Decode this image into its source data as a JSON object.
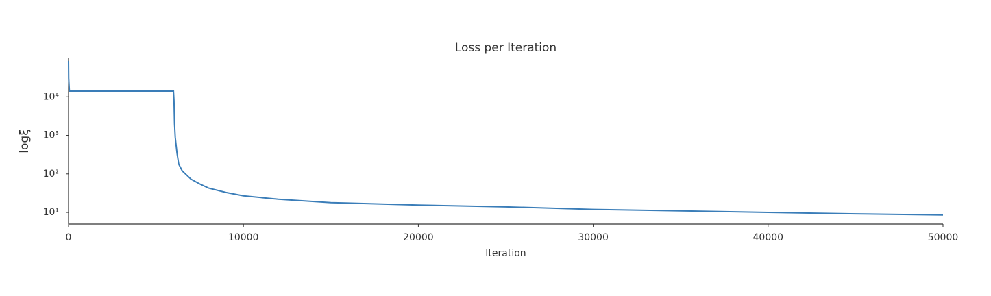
{
  "chart_data": {
    "type": "line",
    "title": "Loss per Iteration",
    "x_label": "Iteration",
    "y_label": "logξ",
    "x": [
      0,
      10,
      50,
      100,
      6000,
      6030,
      6060,
      6100,
      6200,
      6300,
      6500,
      7000,
      7500,
      8000,
      9000,
      10000,
      12000,
      15000,
      20000,
      25000,
      30000,
      35000,
      40000,
      45000,
      50000
    ],
    "series": [
      {
        "name": "loss",
        "color": "#3a7db8",
        "values": [
          85000,
          30000,
          14000,
          14000,
          14000,
          8000,
          2000,
          900,
          350,
          180,
          120,
          73,
          55,
          43,
          33,
          27,
          22,
          18,
          15.6,
          14,
          12,
          11,
          10,
          9.2,
          8.6
        ]
      }
    ],
    "xlim": [
      0,
      50000
    ],
    "xticks": [
      0,
      10000,
      20000,
      30000,
      40000,
      50000
    ],
    "ylim": [
      5,
      100000
    ],
    "y_scale": "log",
    "yticks": [
      {
        "value": 10,
        "label": "10¹"
      },
      {
        "value": 100,
        "label": "10²"
      },
      {
        "value": 1000,
        "label": "10³"
      },
      {
        "value": 10000,
        "label": "10⁴"
      }
    ],
    "grid": false
  }
}
